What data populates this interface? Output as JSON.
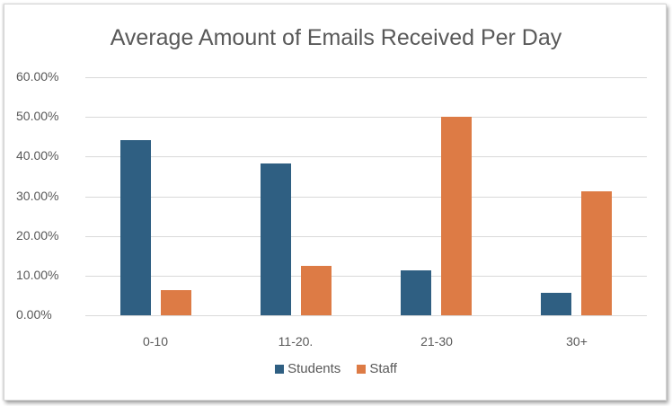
{
  "chart_data": {
    "type": "bar",
    "title": "Average Amount of Emails Received Per Day",
    "xlabel": "",
    "ylabel": "",
    "categories": [
      "0-10",
      "11-20.",
      "21-30",
      "30+"
    ],
    "series": [
      {
        "name": "Students",
        "color": "#2f5f82",
        "values": [
          44.1,
          38.2,
          11.3,
          5.7
        ]
      },
      {
        "name": "Staff",
        "color": "#dd7b45",
        "values": [
          6.3,
          12.4,
          50.0,
          31.2
        ]
      }
    ],
    "ylim": [
      0,
      60
    ],
    "yticks": [
      "0.00%",
      "10.00%",
      "20.00%",
      "30.00%",
      "40.00%",
      "50.00%",
      "60.00%"
    ],
    "grid": true,
    "legend_position": "bottom"
  },
  "title": "Average Amount of Emails Received Per Day",
  "legend": {
    "students": "Students",
    "staff": "Staff"
  }
}
